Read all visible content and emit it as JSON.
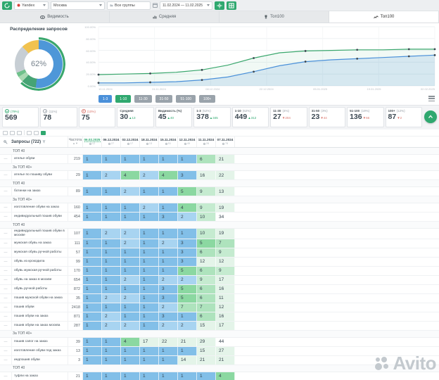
{
  "toolbar": {
    "search_engine": "Yandex",
    "region": "Москва",
    "groups_filter": "Все группы",
    "date_range": "11.02.2024 — 11.02.2025"
  },
  "tabs": [
    {
      "label": "Видимость",
      "icon": "visibility-icon",
      "active": false
    },
    {
      "label": "Средняя",
      "icon": "average-icon",
      "active": false
    },
    {
      "label": "Топ100",
      "icon": "trophy-icon",
      "active": false
    },
    {
      "label": "Топ100",
      "icon": "dynamics-icon",
      "active": true
    }
  ],
  "chart_data": [
    {
      "type": "pie",
      "title": "Распределение запросов",
      "center_label": "62%",
      "slices": [
        {
          "label": "1-3",
          "value": 52,
          "color": "#4e97d8"
        },
        {
          "label": "4-10",
          "value": 10,
          "color": "#46a474"
        },
        {
          "label": "11-30",
          "value": 4,
          "color": "#a9d9b2"
        },
        {
          "label": "31-50",
          "value": 3,
          "color": "#6fc18b"
        },
        {
          "label": "51-100",
          "value": 19,
          "color": "#c7ced4"
        },
        {
          "label": "100+",
          "value": 12,
          "color": "#f1c24f"
        }
      ],
      "outer_ring": {
        "label": "Топ10",
        "value": 62,
        "color": "#3aa76d"
      }
    },
    {
      "type": "line",
      "ylim": [
        0,
        100
      ],
      "y_ticks": [
        "100.00%",
        "80.00%",
        "60.00%",
        "40.00%",
        "20.00%",
        "0.00%"
      ],
      "x": [
        "10.11.2024",
        "24.11.2024",
        "08.12.2024",
        "22.12.2024",
        "05.01.2025",
        "19.01.2025",
        "02.02.2025"
      ],
      "series": [
        {
          "name": "1-10",
          "color": "#3aa76d",
          "values": [
            19,
            20,
            21,
            23,
            27,
            35,
            47,
            56,
            59,
            60,
            61,
            61,
            62,
            62
          ]
        },
        {
          "name": "1-3",
          "color": "#4a90d9",
          "values": [
            5,
            5,
            6,
            7,
            10,
            15,
            24,
            34,
            41,
            44,
            46,
            48,
            50,
            52
          ]
        }
      ]
    }
  ],
  "range_buttons": [
    {
      "label": "1-3",
      "state": "blue"
    },
    {
      "label": "1-10",
      "state": "green"
    },
    {
      "label": "11-30",
      "state": "gray"
    },
    {
      "label": "31-50",
      "state": "gray"
    },
    {
      "label": "51-100",
      "state": "gray"
    },
    {
      "label": "100+",
      "state": "gray"
    }
  ],
  "stats": [
    {
      "icon": "up",
      "label": "(79%)",
      "value": "569"
    },
    {
      "icon": "flat",
      "label": "(11%)",
      "value": "78"
    },
    {
      "icon": "down",
      "label": "(10%)",
      "value": "75"
    },
    {
      "label": "Средняя",
      "value": "30",
      "delta": "13",
      "delta_dir": "up"
    },
    {
      "label": "Видимость (%)",
      "value": "45",
      "delta": "40",
      "delta_dir": "up"
    },
    {
      "label": "1-3",
      "sub": "(52%)",
      "value": "378",
      "delta": "345",
      "delta_dir": "up"
    },
    {
      "label": "1-10",
      "sub": "(62%)",
      "value": "449",
      "delta": "312",
      "delta_dir": "up"
    },
    {
      "label": "11-30",
      "sub": "(4%)",
      "value": "27",
      "delta": "204",
      "delta_dir": "down"
    },
    {
      "label": "31-50",
      "sub": "(3%)",
      "value": "23",
      "delta": "44",
      "delta_dir": "down"
    },
    {
      "label": "51-100",
      "sub": "(19%)",
      "value": "136",
      "delta": "66",
      "delta_dir": "down"
    },
    {
      "label": "100+",
      "sub": "(12%)",
      "value": "87",
      "delta": "2",
      "delta_dir": "down"
    }
  ],
  "table": {
    "title": "Запросы (722)",
    "freq_header": "Частота",
    "dates": [
      {
        "label": "06.02.2025",
        "active": true,
        "meta": "12"
      },
      {
        "label": "06.12.2024",
        "active": false,
        "meta": "27"
      },
      {
        "label": "03.12.2024",
        "active": false,
        "meta": "17"
      },
      {
        "label": "18.11.2024",
        "active": false,
        "meta": "13"
      },
      {
        "label": "15.11.2024",
        "active": false,
        "meta": "51"
      },
      {
        "label": "12.11.2024",
        "active": false,
        "meta": "49"
      },
      {
        "label": "11.11.2024",
        "active": false,
        "meta": "28"
      },
      {
        "label": "07.11.2024",
        "active": false,
        "meta": "78"
      }
    ],
    "rows": [
      {
        "type": "group",
        "label": "ТОП 40"
      },
      {
        "type": "kw",
        "label": "ателье обуви",
        "freq": "219",
        "positions": [
          "1",
          "1",
          "1",
          "1",
          "1",
          "1",
          "6",
          "21"
        ]
      },
      {
        "type": "group",
        "label": "За ТОП 40+"
      },
      {
        "type": "kw",
        "label": "ателье по пошиву обуви",
        "freq": "29",
        "positions": [
          "1",
          "2",
          "4",
          "2",
          "4",
          "3",
          "16",
          "22"
        ]
      },
      {
        "type": "group",
        "label": "ТОП 40"
      },
      {
        "type": "kw",
        "label": "ботинки на заказ",
        "freq": "89",
        "positions": [
          "1",
          "1",
          "2",
          "1",
          "1",
          "5",
          "9",
          "13"
        ]
      },
      {
        "type": "group",
        "label": "За ТОП 40+"
      },
      {
        "type": "kw",
        "label": "изготовление обуви на заказ",
        "freq": "160",
        "positions": [
          "1",
          "1",
          "1",
          "2",
          "1",
          "4",
          "9",
          "19"
        ]
      },
      {
        "type": "kw",
        "label": "индивидуальный пошив обуви",
        "freq": "454",
        "positions": [
          "1",
          "1",
          "1",
          "1",
          "3",
          "2",
          "10",
          "34"
        ]
      },
      {
        "type": "group",
        "label": "ТОП 40"
      },
      {
        "type": "kw",
        "label": "индивидуальный пошив обуви в москве",
        "freq": "107",
        "positions": [
          "1",
          "2",
          "2",
          "1",
          "1",
          "1",
          "10",
          "19"
        ]
      },
      {
        "type": "kw",
        "label": "мужская обувь на заказ",
        "freq": "111",
        "positions": [
          "1",
          "1",
          "2",
          "1",
          "2",
          "3",
          "5",
          "7"
        ]
      },
      {
        "type": "kw",
        "label": "мужская обувь ручной работы",
        "freq": "57",
        "positions": [
          "1",
          "1",
          "1",
          "1",
          "1",
          "3",
          "6",
          "9"
        ]
      },
      {
        "type": "kw",
        "label": "обувь из крокодила",
        "freq": "99",
        "positions": [
          "1",
          "1",
          "1",
          "1",
          "1",
          "3",
          "12",
          "12"
        ]
      },
      {
        "type": "kw",
        "label": "обувь мужская ручной работы",
        "freq": "170",
        "positions": [
          "1",
          "1",
          "1",
          "1",
          "1",
          "5",
          "6",
          "9"
        ]
      },
      {
        "type": "kw",
        "label": "обувь на заказ в москве",
        "freq": "654",
        "positions": [
          "1",
          "1",
          "2",
          "1",
          "2",
          "2",
          "9",
          "17"
        ]
      },
      {
        "type": "kw",
        "label": "обувь ручной работы",
        "freq": "872",
        "positions": [
          "1",
          "1",
          "1",
          "1",
          "3",
          "5",
          "6",
          "16"
        ]
      },
      {
        "type": "kw",
        "label": "пошив мужской обуви на заказ",
        "freq": "35",
        "positions": [
          "1",
          "2",
          "2",
          "1",
          "3",
          "5",
          "6",
          "11"
        ]
      },
      {
        "type": "kw",
        "label": "пошив обуви",
        "freq": "2418",
        "positions": [
          "1",
          "1",
          "1",
          "1",
          "2",
          "7",
          "7",
          "12"
        ]
      },
      {
        "type": "kw",
        "label": "пошив обуви на заказ",
        "freq": "871",
        "positions": [
          "1",
          "2",
          "1",
          "1",
          "3",
          "1",
          "6",
          "16"
        ]
      },
      {
        "type": "kw",
        "label": "пошив обуви на заказ москва",
        "freq": "287",
        "positions": [
          "1",
          "2",
          "2",
          "1",
          "2",
          "2",
          "15",
          "17"
        ]
      },
      {
        "type": "group",
        "label": "За ТОП 40+"
      },
      {
        "type": "kw",
        "label": "пошив сапог на заказ",
        "freq": "39",
        "positions": [
          "1",
          "1",
          "4",
          "17",
          "22",
          "21",
          "29",
          "44"
        ]
      },
      {
        "type": "kw",
        "label": "изготовление обуви под заказ",
        "freq": "13",
        "positions": [
          "1",
          "1",
          "1",
          "1",
          "1",
          "1",
          "15",
          "27"
        ]
      },
      {
        "type": "kw",
        "label": "индпошив обуви",
        "freq": "3",
        "positions": [
          "1",
          "1",
          "1",
          "1",
          "1",
          "14",
          "21",
          "21"
        ]
      },
      {
        "type": "group",
        "label": "ТОП 40"
      },
      {
        "type": "kw",
        "label": "туфли на заказ",
        "freq": "21",
        "positions": [
          "1",
          "1",
          "1",
          "1",
          "1",
          "1",
          "1",
          "4"
        ]
      }
    ]
  },
  "watermark": "Avito"
}
